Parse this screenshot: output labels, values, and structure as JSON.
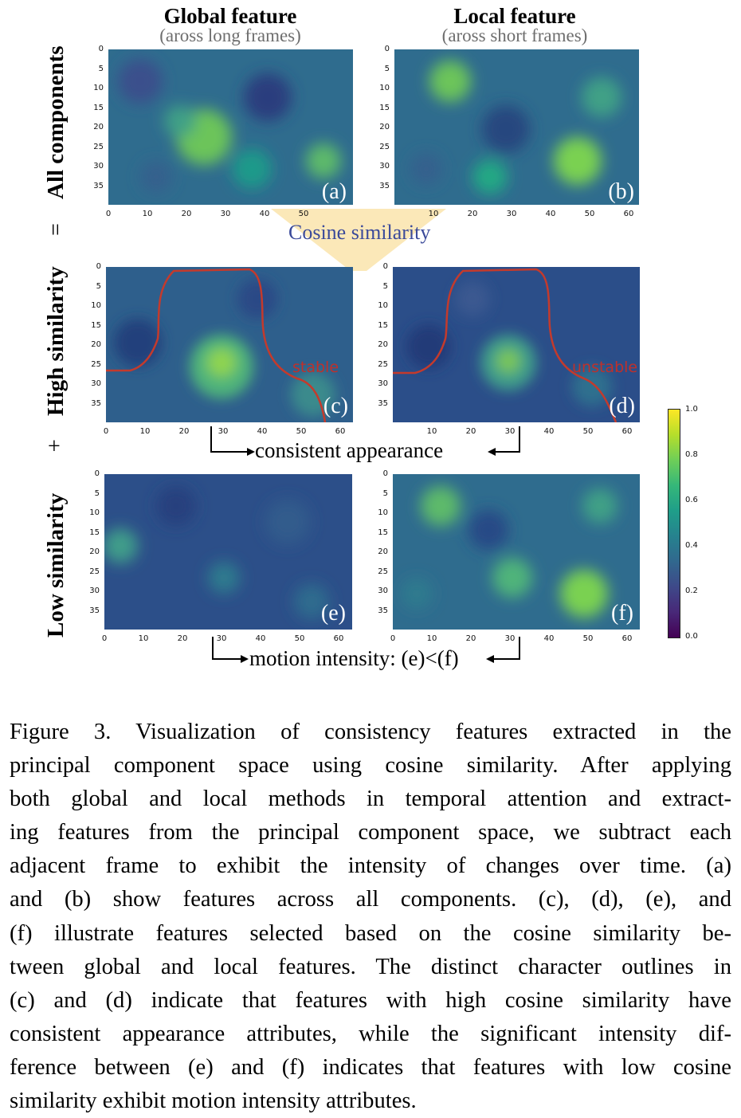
{
  "columns": {
    "global": {
      "title": "Global feature",
      "subtitle": "(aross long frames)"
    },
    "local": {
      "title": "Local feature",
      "subtitle": "(aross short frames)"
    }
  },
  "rows": {
    "all": "All components",
    "high": "High similarity",
    "low": "Low similarity",
    "op_equals": "=",
    "op_plus": "+"
  },
  "panels": {
    "a": "(a)",
    "b": "(b)",
    "c": "(c)",
    "d": "(d)",
    "e": "(e)",
    "f": "(f)"
  },
  "annotations": {
    "cosine": "Cosine similarity",
    "stable": "stable",
    "unstable": "unstable",
    "consistent": "consistent appearance",
    "motion": "motion intensity: (e)<(f)"
  },
  "axes": {
    "y_ticks": [
      "0",
      "5",
      "10",
      "15",
      "20",
      "25",
      "30",
      "35"
    ],
    "x_ticks": [
      "0",
      "10",
      "20",
      "30",
      "40",
      "50",
      "60"
    ]
  },
  "colorbar": {
    "ticks": [
      "1.0",
      "0.8",
      "0.6",
      "0.4",
      "0.2",
      "0.0"
    ],
    "colors": [
      "#fde725",
      "#7ad151",
      "#22a884",
      "#2a788e",
      "#414487",
      "#440154"
    ]
  },
  "caption": {
    "lines": [
      "Figure 3.  Visualization of consistency features extracted in the",
      "principal component space using cosine similarity. After applying",
      "both global and local methods in temporal attention and extract-",
      "ing features from the principal component space, we subtract each",
      "adjacent frame to exhibit the intensity of changes over time.  (a)",
      "and (b) show features across all components.  (c), (d), (e), and",
      "(f) illustrate features selected based on the cosine similarity be-",
      "tween global and local features. The distinct character outlines in",
      "(c) and (d) indicate that features with high cosine similarity have",
      "consistent appearance attributes, while the significant intensity dif-",
      "ference between (e) and (f) indicates that features with low cosine",
      "similarity exhibit motion intensity attributes."
    ]
  }
}
